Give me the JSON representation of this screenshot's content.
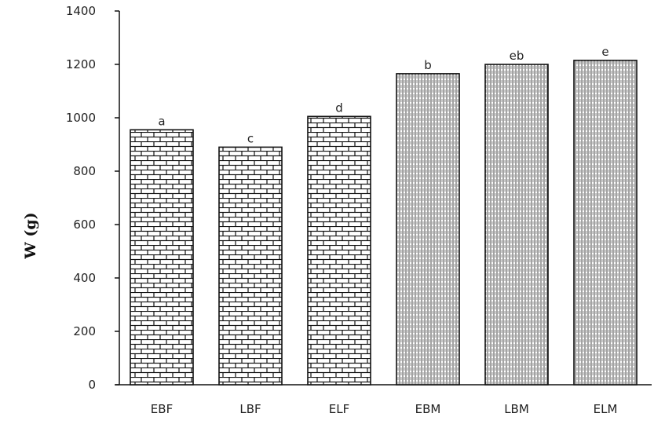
{
  "chart_data": {
    "type": "bar",
    "title": "",
    "xlabel": "",
    "ylabel": "W (g)",
    "ylim": [
      0,
      1400
    ],
    "yticks": [
      0,
      200,
      400,
      600,
      800,
      1000,
      1200,
      1400
    ],
    "grid": false,
    "categories": [
      "EBF",
      "LBF",
      "ELF",
      "EBM",
      "LBM",
      "ELM"
    ],
    "values": [
      955,
      890,
      1005,
      1165,
      1200,
      1215
    ],
    "annotations": [
      "a",
      "c",
      "d",
      "b",
      "eb",
      "e"
    ],
    "patterns": [
      "brick",
      "brick",
      "brick",
      "vertical-lines",
      "vertical-lines",
      "vertical-lines"
    ]
  }
}
